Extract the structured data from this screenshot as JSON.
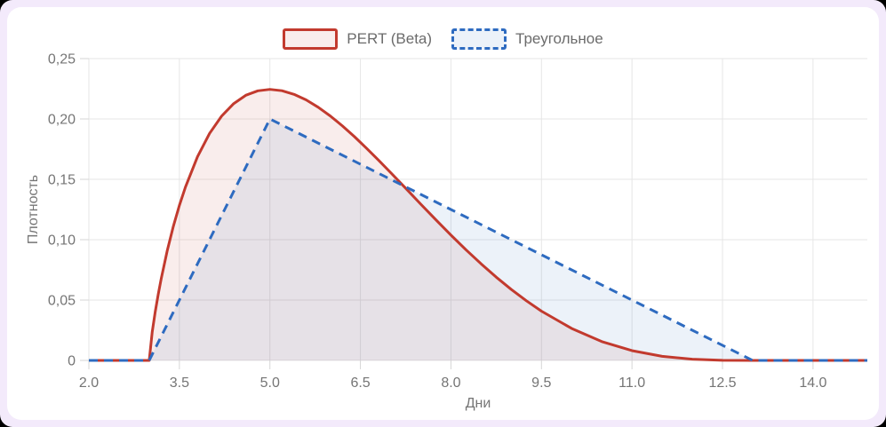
{
  "legend": {
    "items": [
      {
        "label": "PERT (Beta)",
        "color": "#c23a2e",
        "fill": "rgba(194,58,46,0.09)",
        "line_style": "solid"
      },
      {
        "label": "Треугольное",
        "color": "#2e6bc0",
        "fill": "rgba(46,107,192,0.09)",
        "line_style": "dashed"
      }
    ]
  },
  "chart_data": {
    "type": "line",
    "title": "",
    "xlabel": "Дни",
    "ylabel": "Плотность",
    "xlim": [
      2,
      14.9
    ],
    "ylim": [
      0,
      0.25
    ],
    "grid": true,
    "legend_position": "top",
    "x_ticks": {
      "values": [
        2,
        3.5,
        5,
        6.5,
        8,
        9.5,
        11,
        12.5,
        14
      ],
      "labels": [
        "2.0",
        "3.5",
        "5.0",
        "6.5",
        "8.0",
        "9.5",
        "11.0",
        "12.5",
        "14.0"
      ]
    },
    "y_ticks": {
      "values": [
        0,
        0.05,
        0.1,
        0.15,
        0.2,
        0.25
      ],
      "labels": [
        "0",
        "0,05",
        "0,10",
        "0,15",
        "0,20",
        "0,25"
      ]
    },
    "series": [
      {
        "name": "PERT (Beta)",
        "style": "solid",
        "color": "#c23a2e",
        "fill": "rgba(194,58,46,0.09)",
        "points": [
          [
            2,
            0
          ],
          [
            3,
            0
          ],
          [
            3.05,
            0.0236
          ],
          [
            3.1,
            0.0404
          ],
          [
            3.15,
            0.0549
          ],
          [
            3.2,
            0.068
          ],
          [
            3.3,
            0.0912
          ],
          [
            3.4,
            0.1111
          ],
          [
            3.5,
            0.1284
          ],
          [
            3.6,
            0.1435
          ],
          [
            3.8,
            0.1687
          ],
          [
            4,
            0.188
          ],
          [
            4.2,
            0.2024
          ],
          [
            4.4,
            0.2127
          ],
          [
            4.6,
            0.2196
          ],
          [
            4.8,
            0.2233
          ],
          [
            5,
            0.2245
          ],
          [
            5.2,
            0.2234
          ],
          [
            5.4,
            0.2204
          ],
          [
            5.6,
            0.2158
          ],
          [
            5.8,
            0.2097
          ],
          [
            6,
            0.2025
          ],
          [
            6.2,
            0.1943
          ],
          [
            6.4,
            0.1854
          ],
          [
            6.6,
            0.1758
          ],
          [
            6.8,
            0.1659
          ],
          [
            7,
            0.1556
          ],
          [
            7.25,
            0.1426
          ],
          [
            7.5,
            0.1294
          ],
          [
            7.75,
            0.1165
          ],
          [
            8,
            0.1038
          ],
          [
            8.25,
            0.0916
          ],
          [
            8.5,
            0.08
          ],
          [
            8.75,
            0.069
          ],
          [
            9,
            0.0588
          ],
          [
            9.25,
            0.0494
          ],
          [
            9.5,
            0.0408
          ],
          [
            10,
            0.0265
          ],
          [
            10.5,
            0.0156
          ],
          [
            11,
            0.0081
          ],
          [
            11.5,
            0.0034
          ],
          [
            12,
            0.001
          ],
          [
            12.5,
            0.0001
          ],
          [
            13,
            0
          ],
          [
            14.9,
            0
          ]
        ]
      },
      {
        "name": "Треугольное",
        "style": "dashed",
        "color": "#2e6bc0",
        "fill": "rgba(46,107,192,0.09)",
        "points": [
          [
            2,
            0
          ],
          [
            3,
            0
          ],
          [
            5,
            0.2
          ],
          [
            13,
            0
          ],
          [
            14.9,
            0
          ]
        ]
      }
    ]
  },
  "colors": {
    "frame_background": "#f3eafb",
    "card_background": "#ffffff",
    "grid_line": "#e6e6e6",
    "tick_mark": "#d6d6d6",
    "tick_label": "#757575",
    "axis_title": "#757575",
    "legend_label": "#6b6b6b"
  }
}
